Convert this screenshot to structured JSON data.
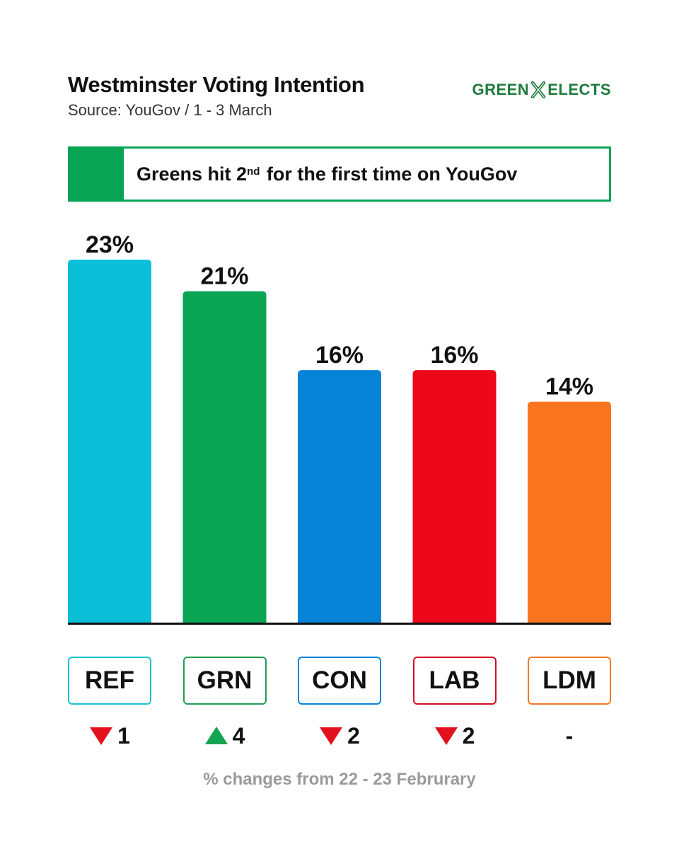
{
  "header": {
    "title": "Westminster Voting Intention",
    "subtitle": "Source: YouGov / 1 - 3 March",
    "brand_left": "GREEN",
    "brand_right": "ELECTS",
    "brand_color": "#1f7a3c"
  },
  "banner": {
    "text_before": "Greens hit 2",
    "superscript": "nd",
    "text_after": " for the first time on YouGov",
    "accent_color": "#0aa455"
  },
  "chart_data": {
    "type": "bar",
    "categories": [
      "REF",
      "GRN",
      "CON",
      "LAB",
      "LDM"
    ],
    "values": [
      23,
      21,
      16,
      16,
      14
    ],
    "value_labels": [
      "23%",
      "21%",
      "16%",
      "16%",
      "14%"
    ],
    "colors": [
      "#0bbfd8",
      "#0aa455",
      "#0783d8",
      "#ec0719",
      "#fa7520"
    ],
    "border_colors": [
      "#1bc2cf",
      "#1f9d55",
      "#0783d8",
      "#d50f25",
      "#f07a25"
    ],
    "changes": [
      {
        "direction": "down",
        "value": "1"
      },
      {
        "direction": "up",
        "value": "4"
      },
      {
        "direction": "down",
        "value": "2"
      },
      {
        "direction": "down",
        "value": "2"
      },
      {
        "direction": "none",
        "value": "-"
      }
    ],
    "ylim": [
      0,
      23
    ],
    "grid": false,
    "footnote": "% changes from 22 - 23 Februrary"
  }
}
